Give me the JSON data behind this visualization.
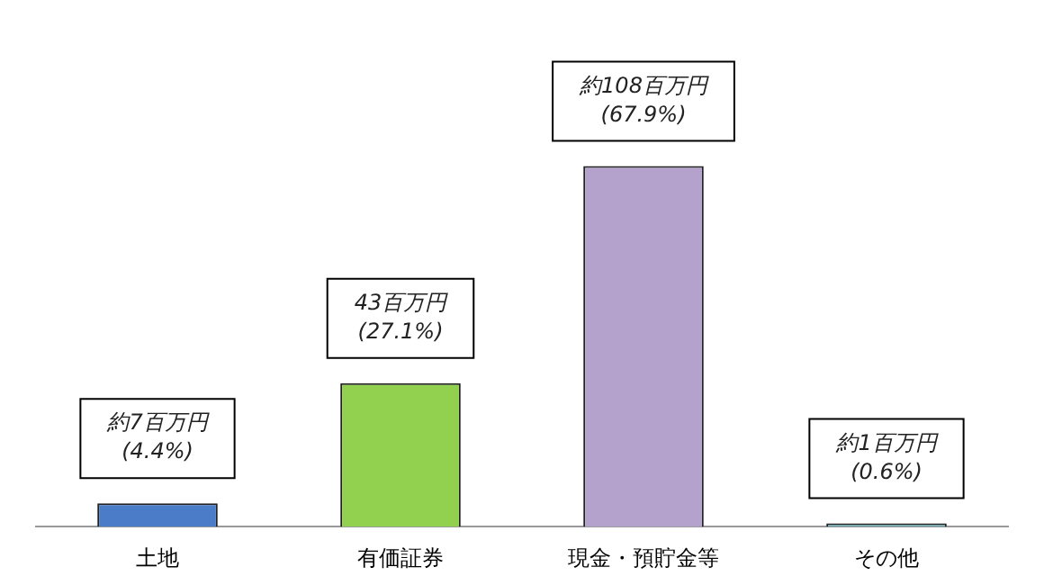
{
  "chart_data": {
    "type": "bar",
    "categories": [
      "土地",
      "有価証券",
      "現金・預貯金等",
      "その他"
    ],
    "values": [
      7,
      43,
      108,
      1
    ],
    "colors": [
      "#4a7cc8",
      "#92d050",
      "#b4a2cc",
      "#6fa3ad"
    ],
    "value_labels": [
      "約7百万円\n(4.4%)",
      "43百万円\n(27.1%)",
      "約108百万円\n(67.9%)",
      "約1百万円\n(0.6%)"
    ],
    "grid": false,
    "legend": false,
    "tick_labels": "x"
  }
}
